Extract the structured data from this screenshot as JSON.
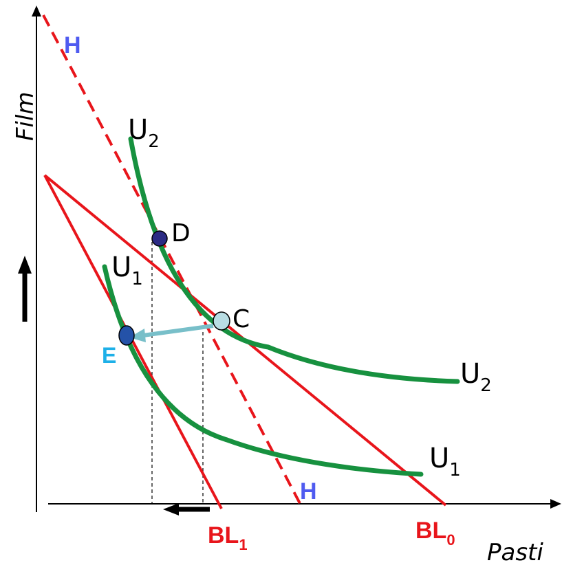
{
  "axes": {
    "y_label": "Film",
    "x_label": "Pasti"
  },
  "curves": {
    "u2_top": {
      "base": "U",
      "sub": "2"
    },
    "u2_right": {
      "base": "U",
      "sub": "2"
    },
    "u1_top": {
      "base": "U",
      "sub": "1"
    },
    "u1_right": {
      "base": "U",
      "sub": "1"
    }
  },
  "budget_lines": {
    "bl0": {
      "base": "BL",
      "sub": "0"
    },
    "bl1": {
      "base": "BL",
      "sub": "1"
    },
    "h_top": "H",
    "h_bottom": "H"
  },
  "points": {
    "c": "C",
    "d": "D",
    "e": "E"
  },
  "colors": {
    "budget_line": "#e8151b",
    "indifference_curve": "#17913f",
    "h_label": "#4f5bf0",
    "e_label": "#1eb0e8",
    "point_c": "#b8dde3",
    "point_d": "#2b2b84",
    "point_e": "#2452a8",
    "substitution_arrow": "#78bfc9"
  }
}
